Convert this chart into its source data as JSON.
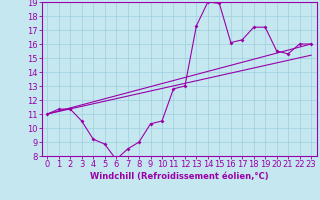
{
  "bg_color": "#c5e8f0",
  "grid_color": "#9ecfdc",
  "line_color": "#9900aa",
  "spine_color": "#9900aa",
  "xlabel": "Windchill (Refroidissement éolien,°C)",
  "xlim": [
    -0.5,
    23.5
  ],
  "ylim": [
    8,
    19
  ],
  "xticks": [
    0,
    1,
    2,
    3,
    4,
    5,
    6,
    7,
    8,
    9,
    10,
    11,
    12,
    13,
    14,
    15,
    16,
    17,
    18,
    19,
    20,
    21,
    22,
    23
  ],
  "yticks": [
    8,
    9,
    10,
    11,
    12,
    13,
    14,
    15,
    16,
    17,
    18,
    19
  ],
  "line1_x": [
    0,
    1,
    2,
    3,
    4,
    5,
    6,
    7,
    8,
    9,
    10,
    11,
    12,
    13,
    14,
    15,
    16,
    17,
    18,
    19,
    20,
    21,
    22,
    23
  ],
  "line1_y": [
    11.0,
    11.35,
    11.35,
    10.5,
    9.2,
    8.85,
    7.75,
    8.5,
    9.0,
    10.3,
    10.5,
    12.8,
    13.0,
    17.3,
    19.0,
    18.9,
    16.1,
    16.3,
    17.2,
    17.2,
    15.5,
    15.3,
    16.0,
    16.0
  ],
  "line2_x": [
    0,
    23
  ],
  "line2_y": [
    11.0,
    16.0
  ],
  "line3_x": [
    0,
    23
  ],
  "line3_y": [
    11.0,
    15.2
  ],
  "marker_size": 2.0,
  "linewidth": 0.8,
  "tick_fontsize": 6,
  "xlabel_fontsize": 6
}
